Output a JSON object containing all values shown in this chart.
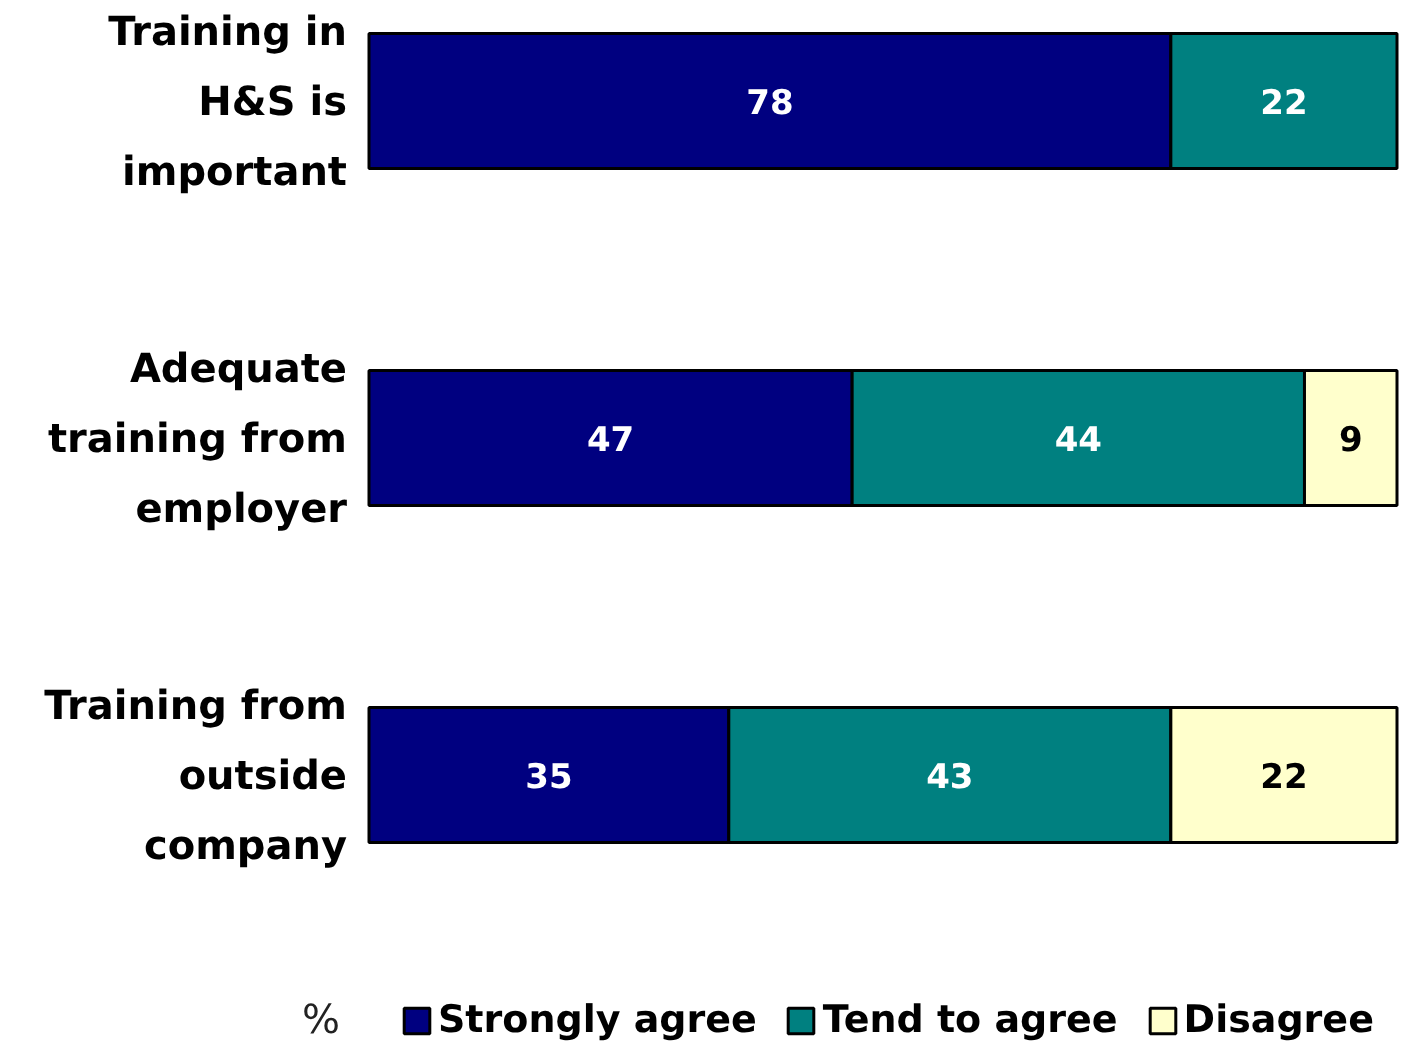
{
  "chart_data": {
    "type": "bar",
    "orientation": "horizontal",
    "stacked": true,
    "categories": [
      "Training in H&S is important",
      "Adequate training from employer",
      "Training from outside company"
    ],
    "series": [
      {
        "name": "Strongly agree",
        "color": "#000080",
        "values": [
          78,
          47,
          35
        ]
      },
      {
        "name": "Tend to agree",
        "color": "#008080",
        "values": [
          22,
          44,
          43
        ]
      },
      {
        "name": "Disagree",
        "color": "#ffffcc",
        "values": [
          null,
          9,
          22
        ]
      }
    ],
    "data_labels": true,
    "tick_labels": "y",
    "legend": "bottom",
    "legend_title": "%"
  }
}
